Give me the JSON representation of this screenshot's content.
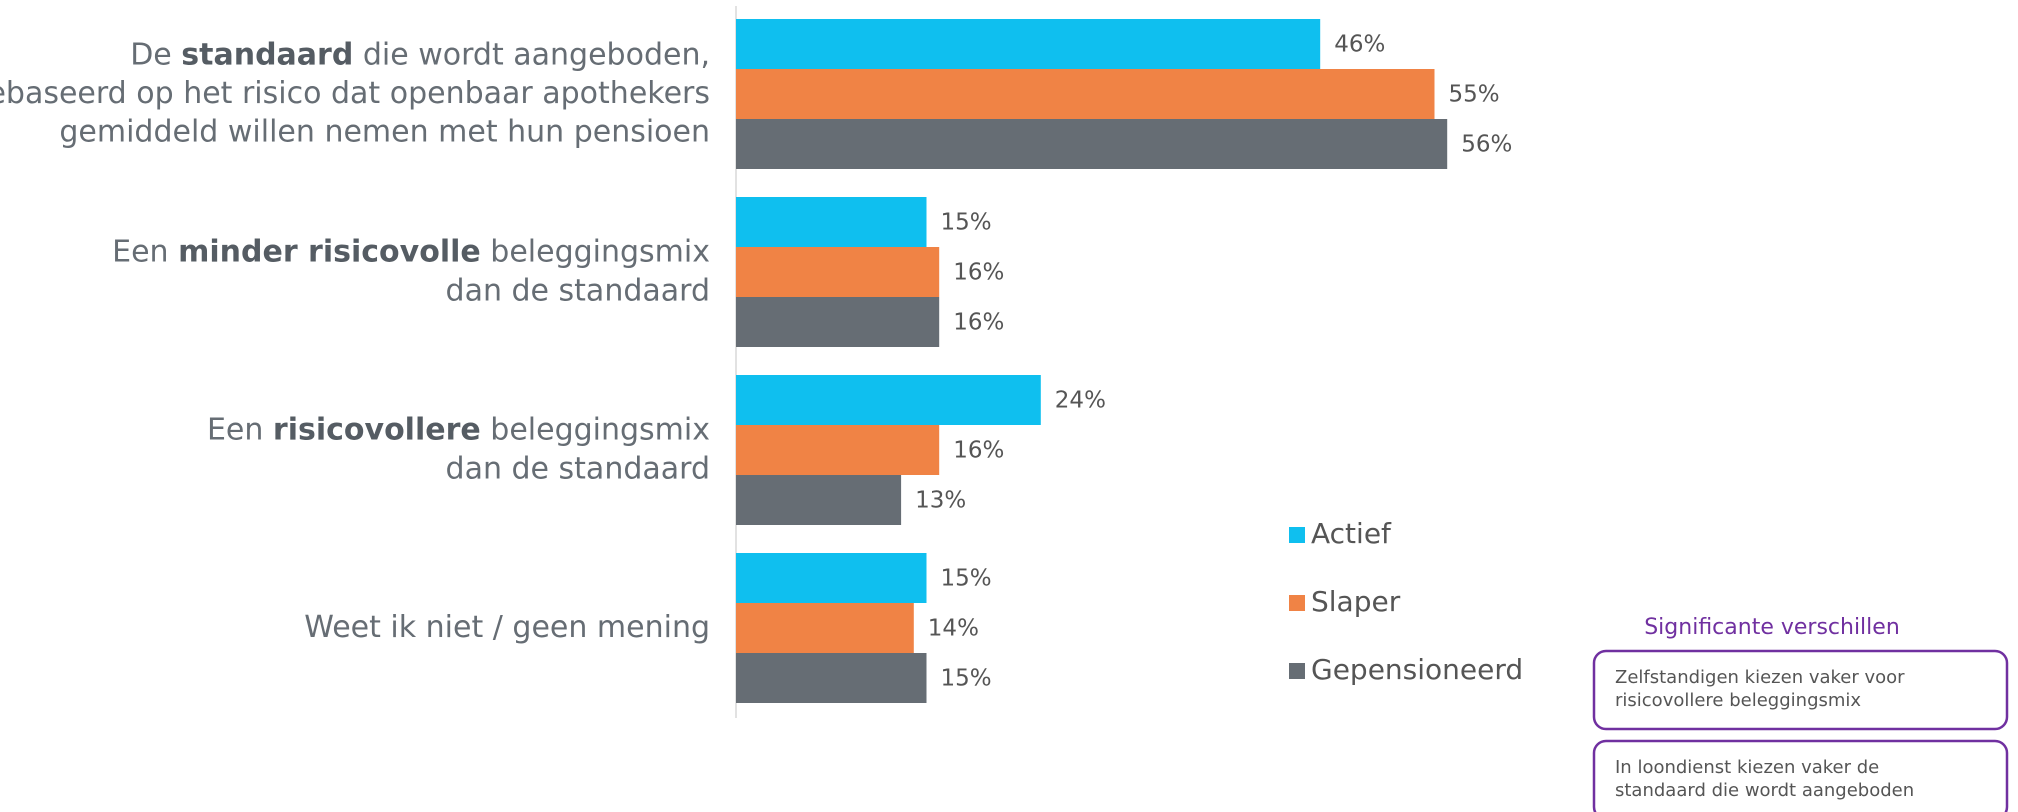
{
  "chart_data": {
    "type": "bar",
    "orientation": "horizontal",
    "categories": [
      {
        "lines": [
          [
            {
              "text": "De "
            },
            {
              "text": "standaard",
              "bold": true
            },
            {
              "text": " die wordt aangeboden,"
            }
          ],
          [
            {
              "text": "gebaseerd op het risico dat openbaar apothekers"
            }
          ],
          [
            {
              "text": "gemiddeld willen nemen met hun pensioen"
            }
          ]
        ]
      },
      {
        "lines": [
          [
            {
              "text": "Een "
            },
            {
              "text": "minder risicovolle",
              "bold": true
            },
            {
              "text": " beleggingsmix"
            }
          ],
          [
            {
              "text": "dan de standaard"
            }
          ]
        ]
      },
      {
        "lines": [
          [
            {
              "text": "Een "
            },
            {
              "text": "risicovollere",
              "bold": true
            },
            {
              "text": " beleggingsmix"
            }
          ],
          [
            {
              "text": "dan de standaard"
            }
          ]
        ]
      },
      {
        "lines": [
          [
            {
              "text": "Weet ik niet / geen mening"
            }
          ]
        ]
      }
    ],
    "series": [
      {
        "name": "Actief",
        "color": "#0fbfef",
        "values": [
          46,
          15,
          24,
          15
        ],
        "value_labels": [
          "46%",
          "15%",
          "24%",
          "15%"
        ]
      },
      {
        "name": "Slaper",
        "color": "#f08345",
        "values": [
          55,
          16,
          16,
          14
        ],
        "value_labels": [
          "55%",
          "16%",
          "16%",
          "14%"
        ]
      },
      {
        "name": "Gepensioneerd",
        "color": "#666d74",
        "values": [
          56,
          16,
          13,
          15
        ],
        "value_labels": [
          "56%",
          "16%",
          "13%",
          "15%"
        ]
      }
    ],
    "xlim": [
      0,
      100
    ],
    "legend": "right"
  },
  "notes": {
    "title": "Significante verschillen",
    "items": [
      {
        "lines": [
          "Zelfstandigen kiezen vaker voor",
          "risicovollere beleggingsmix"
        ]
      },
      {
        "lines": [
          "In loondienst kiezen vaker de",
          "standaard die wordt aangeboden"
        ]
      }
    ]
  }
}
